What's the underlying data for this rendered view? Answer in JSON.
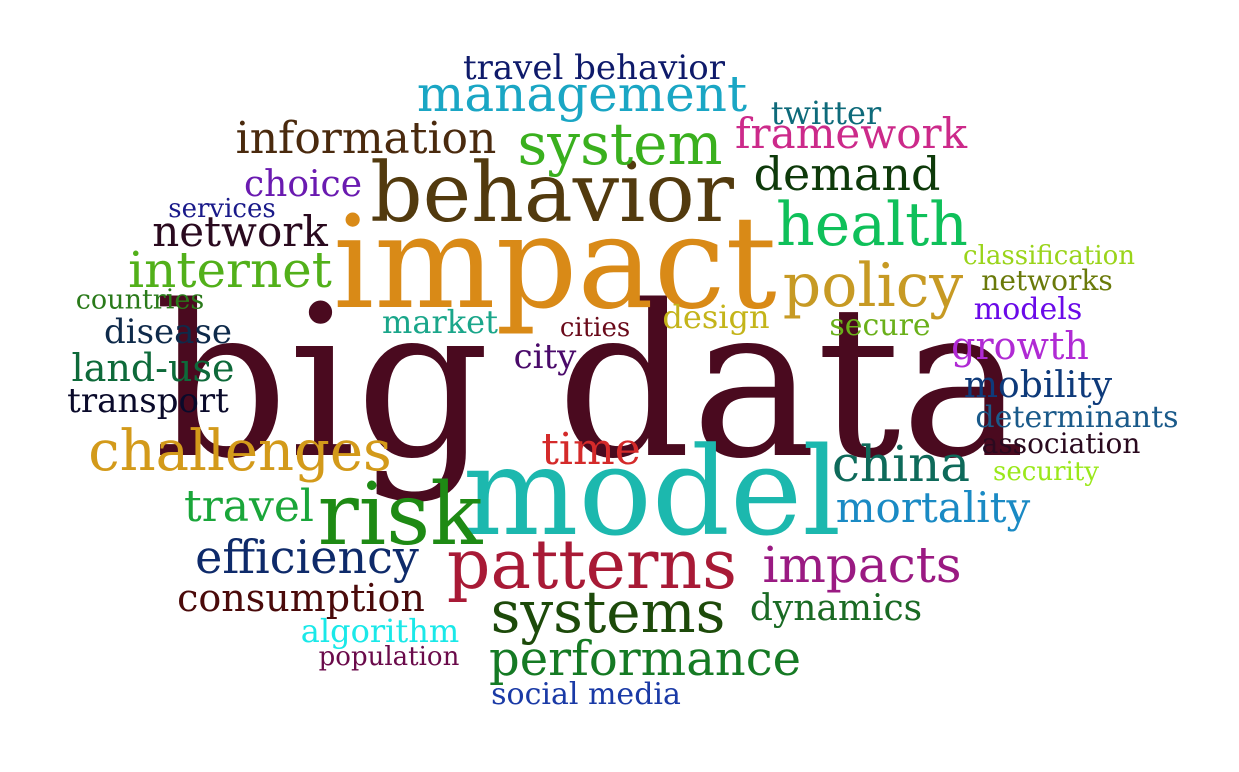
{
  "words": [
    {
      "text": "big data",
      "color": "#4a0a1f"
    },
    {
      "text": "impact",
      "color": "#d98a17"
    },
    {
      "text": "model",
      "color": "#1cb8ae"
    },
    {
      "text": "behavior",
      "color": "#523a0e"
    },
    {
      "text": "patterns",
      "color": "#a81a36"
    },
    {
      "text": "risk",
      "color": "#1e8a14"
    },
    {
      "text": "systems",
      "color": "#1d4a0a"
    },
    {
      "text": "system",
      "color": "#3ab01e"
    },
    {
      "text": "health",
      "color": "#0fc05a"
    },
    {
      "text": "policy",
      "color": "#c79a24"
    },
    {
      "text": "management",
      "color": "#1aa6c4"
    },
    {
      "text": "impacts",
      "color": "#9a1a82"
    },
    {
      "text": "performance",
      "color": "#157a24"
    },
    {
      "text": "challenges",
      "color": "#d39a1a"
    },
    {
      "text": "china",
      "color": "#0e6a5a"
    },
    {
      "text": "demand",
      "color": "#0e3a0a"
    },
    {
      "text": "internet",
      "color": "#52b01a"
    },
    {
      "text": "efficiency",
      "color": "#0e2a6a"
    },
    {
      "text": "information",
      "color": "#4a2a0e"
    },
    {
      "text": "framework",
      "color": "#cc2a8a"
    },
    {
      "text": "mortality",
      "color": "#1a8ac4"
    },
    {
      "text": "time",
      "color": "#d42a2a"
    },
    {
      "text": "travel",
      "color": "#1aa63a"
    },
    {
      "text": "network",
      "color": "#2a0a1f"
    },
    {
      "text": "consumption",
      "color": "#4a0a0a"
    },
    {
      "text": "dynamics",
      "color": "#1a6a24"
    },
    {
      "text": "travel behavior",
      "color": "#0e1a6a"
    },
    {
      "text": "growth",
      "color": "#b02ad4"
    },
    {
      "text": "mobility",
      "color": "#0e3a7a"
    },
    {
      "text": "land-use",
      "color": "#0e6a3a"
    },
    {
      "text": "choice",
      "color": "#6a1ab0"
    },
    {
      "text": "disease",
      "color": "#0e2a4a"
    },
    {
      "text": "transport",
      "color": "#0a0a2a"
    },
    {
      "text": "twitter",
      "color": "#0e6a7a"
    },
    {
      "text": "determinants",
      "color": "#1a5a8a"
    },
    {
      "text": "market",
      "color": "#1aa68a"
    },
    {
      "text": "design",
      "color": "#c4b41a"
    },
    {
      "text": "secure",
      "color": "#6ab01a"
    },
    {
      "text": "city",
      "color": "#4a0a6a"
    },
    {
      "text": "algorithm",
      "color": "#1ae8e8"
    },
    {
      "text": "social media",
      "color": "#1a3aa6"
    },
    {
      "text": "models",
      "color": "#6a0ae8"
    },
    {
      "text": "networks",
      "color": "#6a7a0a"
    },
    {
      "text": "association",
      "color": "#2a0a1f"
    },
    {
      "text": "countries",
      "color": "#2a7a1a"
    },
    {
      "text": "classification",
      "color": "#9ad41a"
    },
    {
      "text": "security",
      "color": "#9ae81a"
    },
    {
      "text": "population",
      "color": "#6a0a4a"
    },
    {
      "text": "services",
      "color": "#1a1a8a"
    },
    {
      "text": "cities",
      "color": "#6a0a1a"
    }
  ]
}
